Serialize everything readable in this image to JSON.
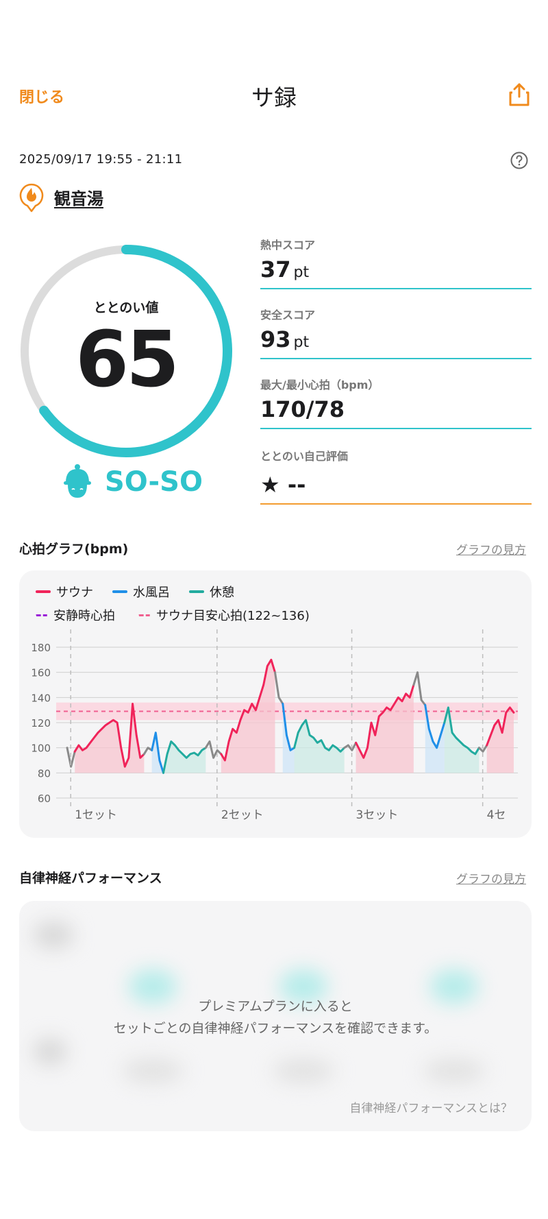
{
  "header": {
    "close_label": "閉じる",
    "title": "サ録"
  },
  "session": {
    "datetime": "2025/09/17 19:55 - 21:11",
    "venue": "観音湯"
  },
  "gauge": {
    "label": "ととのい値",
    "value": "65",
    "max": 100,
    "level": "SO-SO",
    "accent_color": "#2fc3cb"
  },
  "metrics": [
    {
      "label": "熱中スコア",
      "value": "37",
      "unit": "pt"
    },
    {
      "label": "安全スコア",
      "value": "93",
      "unit": "pt"
    },
    {
      "label": "最大/最小心拍（bpm）",
      "value": "170/78",
      "unit": ""
    },
    {
      "label": "ととのい自己評価",
      "value": "★ --",
      "unit": ""
    }
  ],
  "heart_section": {
    "title": "心拍グラフ(bpm)",
    "link": "グラフの見方"
  },
  "legend": {
    "sauna": "サウナ",
    "cold": "水風呂",
    "rest": "休憩",
    "resting": "安静時心拍",
    "target": "サウナ目安心拍(122~136)"
  },
  "colors": {
    "sauna": "#f0245a",
    "cold": "#1f8fe8",
    "rest": "#22ab9f",
    "other": "#8a8a8a",
    "resting": "#9b1fd8",
    "target": "#f06090"
  },
  "chart_data": {
    "type": "line",
    "ylim": [
      60,
      180
    ],
    "yticks": [
      60,
      80,
      100,
      120,
      140,
      160,
      180
    ],
    "target_band": [
      122,
      136
    ],
    "target_line": 129,
    "set_labels": [
      "1セット",
      "2セット",
      "3セット",
      "4セ"
    ],
    "segments": [
      {
        "phase": "other",
        "values": [
          100,
          85,
          97
        ]
      },
      {
        "phase": "sauna",
        "values": [
          97,
          102,
          98,
          100,
          104,
          108,
          112,
          115,
          118,
          120,
          122,
          120,
          100,
          85,
          92,
          135,
          110,
          92,
          95
        ]
      },
      {
        "phase": "other",
        "values": [
          95,
          100,
          98
        ]
      },
      {
        "phase": "cold",
        "values": [
          98,
          112,
          90,
          80
        ]
      },
      {
        "phase": "rest",
        "values": [
          80,
          95,
          105,
          102,
          98,
          95,
          92,
          95,
          96,
          94,
          98,
          100
        ]
      },
      {
        "phase": "other",
        "values": [
          100,
          105,
          92,
          98,
          95
        ]
      },
      {
        "phase": "sauna",
        "values": [
          95,
          90,
          105,
          115,
          112,
          122,
          130,
          128,
          135,
          130,
          140,
          150,
          165,
          170,
          160
        ]
      },
      {
        "phase": "other",
        "values": [
          160,
          140,
          135
        ]
      },
      {
        "phase": "cold",
        "values": [
          135,
          110,
          98,
          100
        ]
      },
      {
        "phase": "rest",
        "values": [
          100,
          112,
          118,
          122,
          110,
          108,
          104,
          106,
          100,
          98,
          102,
          100,
          97,
          100
        ]
      },
      {
        "phase": "other",
        "values": [
          100,
          102,
          98,
          104
        ]
      },
      {
        "phase": "sauna",
        "values": [
          104,
          98,
          92,
          100,
          120,
          110,
          125,
          128,
          132,
          130,
          135,
          140,
          137,
          143,
          140,
          150
        ]
      },
      {
        "phase": "other",
        "values": [
          150,
          160,
          138,
          134
        ]
      },
      {
        "phase": "cold",
        "values": [
          134,
          115,
          105,
          100,
          110,
          120
        ]
      },
      {
        "phase": "rest",
        "values": [
          120,
          132,
          112,
          108,
          105,
          102,
          100,
          97,
          95,
          100
        ]
      },
      {
        "phase": "other",
        "values": [
          100,
          97,
          102
        ]
      },
      {
        "phase": "sauna",
        "values": [
          102,
          110,
          118,
          122,
          112,
          128,
          132,
          128
        ]
      }
    ]
  },
  "autonomic": {
    "title": "自律神経パフォーマンス",
    "link": "グラフの見方",
    "message1": "プレミアムプランに入ると",
    "message2": "セットごとの自律神経パフォーマンスを確認できます。",
    "about": "自律神経パフォーマンスとは？"
  }
}
